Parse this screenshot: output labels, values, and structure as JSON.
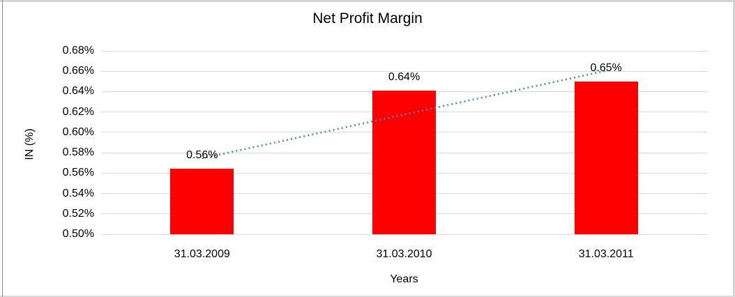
{
  "chart_data": {
    "type": "bar",
    "title": "Net Profit Margin",
    "xlabel": "Years",
    "ylabel": "IN (%)",
    "categories": [
      "31.03.2009",
      "31.03.2010",
      "31.03.2011"
    ],
    "values": [
      0.5645,
      0.641,
      0.65
    ],
    "data_labels": [
      "0.56%",
      "0.64%",
      "0.65%"
    ],
    "ylim": [
      0.5,
      0.68
    ],
    "ytick_step": 0.02,
    "ytick_labels": [
      "0.68%",
      "0.66%",
      "0.64%",
      "0.62%",
      "0.60%",
      "0.58%",
      "0.56%",
      "0.54%",
      "0.52%",
      "0.50%"
    ],
    "grid": true,
    "legend": "none",
    "bar_color": "#FF0000",
    "grid_color": "#D9D9D9",
    "trendline": {
      "type": "linear",
      "style": "dotted",
      "color": "#4E86C0",
      "start_value": 0.5745,
      "end_value": 0.6605
    }
  }
}
